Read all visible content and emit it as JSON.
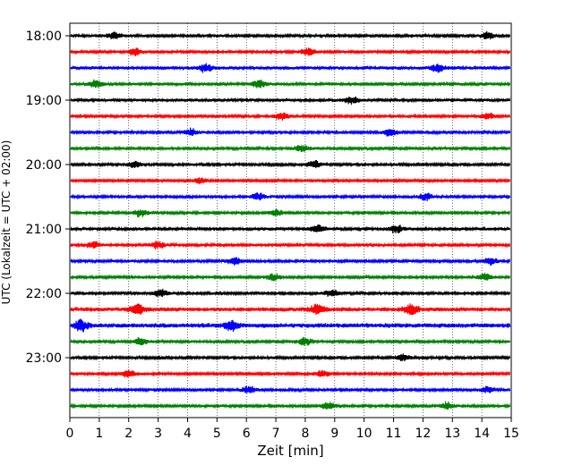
{
  "chart_data": {
    "type": "line",
    "title": "",
    "xlabel": "Zeit  [min]",
    "ylabel": "UTC (Lokalzeit = UTC + 02:00)",
    "xlim": [
      0,
      15
    ],
    "xticks": [
      "0",
      "1",
      "2",
      "3",
      "4",
      "5",
      "6",
      "7",
      "8",
      "9",
      "10",
      "11",
      "12",
      "13",
      "14",
      "15"
    ],
    "yticks": [
      "18:00",
      "19:00",
      "20:00",
      "21:00",
      "22:00",
      "23:00"
    ],
    "grid": "vertical dotted lines at each minute",
    "trace_interval_min": 15,
    "start_time": "18:00",
    "colors": [
      "#000000",
      "#ff0000",
      "#0000ff",
      "#008000"
    ],
    "traces": [
      {
        "start": "18:00",
        "color": "#000000",
        "amplitude": 1.0,
        "bursts": [
          1.5,
          14.2
        ]
      },
      {
        "start": "18:15",
        "color": "#ff0000",
        "amplitude": 1.0,
        "bursts": [
          2.2,
          8.1
        ]
      },
      {
        "start": "18:30",
        "color": "#0000ff",
        "amplitude": 1.2,
        "bursts": [
          4.6,
          12.5
        ]
      },
      {
        "start": "18:45",
        "color": "#008000",
        "amplitude": 1.1,
        "bursts": [
          0.9,
          6.4
        ]
      },
      {
        "start": "19:00",
        "color": "#000000",
        "amplitude": 1.1,
        "bursts": [
          9.6
        ]
      },
      {
        "start": "19:15",
        "color": "#ff0000",
        "amplitude": 1.0,
        "bursts": [
          7.2,
          14.2
        ]
      },
      {
        "start": "19:30",
        "color": "#0000ff",
        "amplitude": 1.0,
        "bursts": [
          4.1,
          10.9
        ]
      },
      {
        "start": "19:45",
        "color": "#008000",
        "amplitude": 1.0,
        "bursts": [
          7.9
        ]
      },
      {
        "start": "20:00",
        "color": "#000000",
        "amplitude": 1.0,
        "bursts": [
          2.2,
          8.3
        ]
      },
      {
        "start": "20:15",
        "color": "#ff0000",
        "amplitude": 0.8,
        "bursts": [
          4.4
        ]
      },
      {
        "start": "20:30",
        "color": "#0000ff",
        "amplitude": 1.0,
        "bursts": [
          6.4,
          12.1
        ]
      },
      {
        "start": "20:45",
        "color": "#008000",
        "amplitude": 1.0,
        "bursts": [
          2.4,
          7.0
        ]
      },
      {
        "start": "21:00",
        "color": "#000000",
        "amplitude": 1.1,
        "bursts": [
          8.4,
          11.1
        ]
      },
      {
        "start": "21:15",
        "color": "#ff0000",
        "amplitude": 1.0,
        "bursts": [
          0.8,
          3.0
        ]
      },
      {
        "start": "21:30",
        "color": "#0000ff",
        "amplitude": 1.0,
        "bursts": [
          5.6,
          14.3
        ]
      },
      {
        "start": "21:45",
        "color": "#008000",
        "amplitude": 1.0,
        "bursts": [
          6.9,
          14.1
        ]
      },
      {
        "start": "22:00",
        "color": "#000000",
        "amplitude": 1.0,
        "bursts": [
          3.1,
          8.9
        ]
      },
      {
        "start": "22:15",
        "color": "#ff0000",
        "amplitude": 1.5,
        "bursts": [
          2.3,
          8.4,
          11.6
        ]
      },
      {
        "start": "22:30",
        "color": "#0000ff",
        "amplitude": 1.6,
        "bursts": [
          0.4,
          5.5
        ]
      },
      {
        "start": "22:45",
        "color": "#008000",
        "amplitude": 1.0,
        "bursts": [
          2.4,
          8.0
        ]
      },
      {
        "start": "23:00",
        "color": "#000000",
        "amplitude": 1.0,
        "bursts": [
          11.3
        ]
      },
      {
        "start": "23:15",
        "color": "#ff0000",
        "amplitude": 1.0,
        "bursts": [
          2.0,
          8.6
        ]
      },
      {
        "start": "23:30",
        "color": "#0000ff",
        "amplitude": 1.0,
        "bursts": [
          6.1,
          14.2
        ]
      },
      {
        "start": "23:45",
        "color": "#008000",
        "amplitude": 1.0,
        "bursts": [
          8.8,
          12.8
        ]
      }
    ]
  }
}
